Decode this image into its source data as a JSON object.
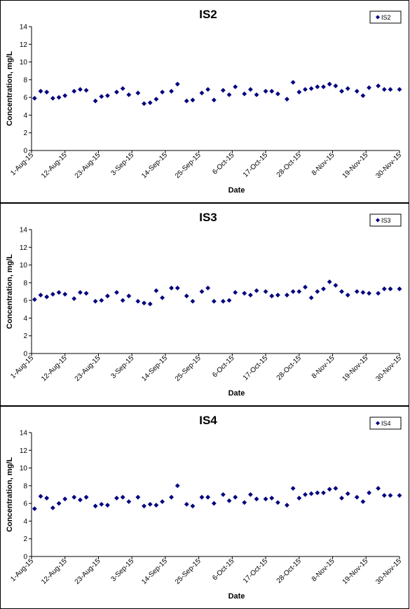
{
  "chart_data": [
    {
      "type": "scatter",
      "title": "IS2",
      "xlabel": "Date",
      "ylabel": "Concentration, mg/L",
      "ylim": [
        0,
        14
      ],
      "yticks": [
        "0",
        "2",
        "4",
        "6",
        "8",
        "10",
        "12",
        "14"
      ],
      "xlim": [
        "2015-08-01",
        "2015-11-30"
      ],
      "xticks": [
        "1-Aug-15",
        "12-Aug-15",
        "23-Aug-15",
        "3-Sep-15",
        "14-Sep-15",
        "25-Sep-15",
        "6-Oct-15",
        "17-Oct-15",
        "28-Oct-15",
        "8-Nov-15",
        "19-Nov-15",
        "30-Nov-15"
      ],
      "grid": false,
      "legend": "top-right",
      "marker_color": "#00007F",
      "series": [
        {
          "name": "IS2",
          "x": [
            "2015-08-02",
            "2015-08-04",
            "2015-08-06",
            "2015-08-08",
            "2015-08-10",
            "2015-08-12",
            "2015-08-15",
            "2015-08-17",
            "2015-08-19",
            "2015-08-22",
            "2015-08-24",
            "2015-08-26",
            "2015-08-29",
            "2015-08-31",
            "2015-09-02",
            "2015-09-05",
            "2015-09-07",
            "2015-09-09",
            "2015-09-11",
            "2015-09-13",
            "2015-09-16",
            "2015-09-18",
            "2015-09-21",
            "2015-09-23",
            "2015-09-26",
            "2015-09-28",
            "2015-09-30",
            "2015-10-03",
            "2015-10-05",
            "2015-10-07",
            "2015-10-10",
            "2015-10-12",
            "2015-10-14",
            "2015-10-17",
            "2015-10-19",
            "2015-10-21",
            "2015-10-24",
            "2015-10-26",
            "2015-10-28",
            "2015-10-30",
            "2015-11-01",
            "2015-11-03",
            "2015-11-05",
            "2015-11-07",
            "2015-11-09",
            "2015-11-11",
            "2015-11-13",
            "2015-11-16",
            "2015-11-18",
            "2015-11-20",
            "2015-11-23",
            "2015-11-25",
            "2015-11-27",
            "2015-11-30"
          ],
          "y": [
            5.9,
            6.7,
            6.6,
            5.9,
            6.0,
            6.2,
            6.7,
            6.9,
            6.8,
            5.6,
            6.1,
            6.2,
            6.6,
            7.0,
            6.3,
            6.5,
            5.3,
            5.4,
            5.8,
            6.6,
            6.7,
            7.5,
            5.6,
            5.7,
            6.5,
            6.9,
            5.7,
            6.8,
            6.3,
            7.2,
            6.4,
            6.9,
            6.3,
            6.7,
            6.7,
            6.4,
            5.8,
            7.7,
            6.6,
            6.9,
            7.0,
            7.2,
            7.2,
            7.5,
            7.3,
            6.7,
            7.0,
            6.7,
            6.2,
            7.1,
            7.3,
            6.9,
            6.9,
            6.9
          ]
        }
      ]
    },
    {
      "type": "scatter",
      "title": "IS3",
      "xlabel": "Date",
      "ylabel": "Concentration, mg/L",
      "ylim": [
        0,
        14
      ],
      "yticks": [
        "0",
        "2",
        "4",
        "6",
        "8",
        "10",
        "12",
        "14"
      ],
      "xlim": [
        "2015-08-01",
        "2015-11-30"
      ],
      "xticks": [
        "1-Aug-15",
        "12-Aug-15",
        "23-Aug-15",
        "3-Sep-15",
        "14-Sep-15",
        "25-Sep-15",
        "6-Oct-15",
        "17-Oct-15",
        "28-Oct-15",
        "8-Nov-15",
        "19-Nov-15",
        "30-Nov-15"
      ],
      "grid": false,
      "legend": "top-right",
      "marker_color": "#00007F",
      "series": [
        {
          "name": "IS3",
          "x": [
            "2015-08-02",
            "2015-08-04",
            "2015-08-06",
            "2015-08-08",
            "2015-08-10",
            "2015-08-12",
            "2015-08-15",
            "2015-08-17",
            "2015-08-19",
            "2015-08-22",
            "2015-08-24",
            "2015-08-26",
            "2015-08-29",
            "2015-08-31",
            "2015-09-02",
            "2015-09-05",
            "2015-09-07",
            "2015-09-09",
            "2015-09-11",
            "2015-09-13",
            "2015-09-16",
            "2015-09-18",
            "2015-09-21",
            "2015-09-23",
            "2015-09-26",
            "2015-09-28",
            "2015-09-30",
            "2015-10-03",
            "2015-10-05",
            "2015-10-07",
            "2015-10-10",
            "2015-10-12",
            "2015-10-14",
            "2015-10-17",
            "2015-10-19",
            "2015-10-21",
            "2015-10-24",
            "2015-10-26",
            "2015-10-28",
            "2015-10-30",
            "2015-11-01",
            "2015-11-03",
            "2015-11-05",
            "2015-11-07",
            "2015-11-09",
            "2015-11-11",
            "2015-11-13",
            "2015-11-16",
            "2015-11-18",
            "2015-11-20",
            "2015-11-23",
            "2015-11-25",
            "2015-11-27",
            "2015-11-30"
          ],
          "y": [
            6.1,
            6.6,
            6.4,
            6.7,
            6.9,
            6.7,
            6.2,
            6.9,
            6.8,
            5.9,
            6.0,
            6.5,
            6.9,
            6.0,
            6.5,
            5.9,
            5.7,
            5.6,
            7.1,
            6.3,
            7.4,
            7.4,
            6.5,
            5.9,
            7.0,
            7.4,
            5.9,
            5.9,
            6.0,
            6.9,
            6.8,
            6.6,
            7.1,
            7.0,
            6.5,
            6.6,
            6.6,
            7.0,
            7.0,
            7.5,
            6.3,
            7.0,
            7.3,
            8.1,
            7.7,
            7.0,
            6.6,
            7.0,
            6.9,
            6.8,
            6.8,
            7.3,
            7.3,
            7.3
          ]
        }
      ]
    },
    {
      "type": "scatter",
      "title": "IS4",
      "xlabel": "Date",
      "ylabel": "Concentration, mg/L",
      "ylim": [
        0,
        14
      ],
      "yticks": [
        "0",
        "2",
        "4",
        "6",
        "8",
        "10",
        "12",
        "14"
      ],
      "xlim": [
        "2015-08-01",
        "2015-11-30"
      ],
      "xticks": [
        "1-Aug-15",
        "12-Aug-15",
        "23-Aug-15",
        "3-Sep-15",
        "14-Sep-15",
        "25-Sep-15",
        "6-Oct-15",
        "17-Oct-15",
        "28-Oct-15",
        "8-Nov-15",
        "19-Nov-15",
        "30-Nov-15"
      ],
      "grid": false,
      "legend": "top-right",
      "marker_color": "#00007F",
      "series": [
        {
          "name": "IS4",
          "x": [
            "2015-08-02",
            "2015-08-04",
            "2015-08-06",
            "2015-08-08",
            "2015-08-10",
            "2015-08-12",
            "2015-08-15",
            "2015-08-17",
            "2015-08-19",
            "2015-08-22",
            "2015-08-24",
            "2015-08-26",
            "2015-08-29",
            "2015-08-31",
            "2015-09-02",
            "2015-09-05",
            "2015-09-07",
            "2015-09-09",
            "2015-09-11",
            "2015-09-13",
            "2015-09-16",
            "2015-09-18",
            "2015-09-21",
            "2015-09-23",
            "2015-09-26",
            "2015-09-28",
            "2015-09-30",
            "2015-10-03",
            "2015-10-05",
            "2015-10-07",
            "2015-10-10",
            "2015-10-12",
            "2015-10-14",
            "2015-10-17",
            "2015-10-19",
            "2015-10-21",
            "2015-10-24",
            "2015-10-26",
            "2015-10-28",
            "2015-10-30",
            "2015-11-01",
            "2015-11-03",
            "2015-11-05",
            "2015-11-07",
            "2015-11-09",
            "2015-11-11",
            "2015-11-13",
            "2015-11-16",
            "2015-11-18",
            "2015-11-20",
            "2015-11-23",
            "2015-11-25",
            "2015-11-27",
            "2015-11-30"
          ],
          "y": [
            5.4,
            6.8,
            6.6,
            5.5,
            6.0,
            6.5,
            6.7,
            6.4,
            6.7,
            5.7,
            5.9,
            5.8,
            6.6,
            6.7,
            6.2,
            6.7,
            5.7,
            5.9,
            5.8,
            6.2,
            6.7,
            8.0,
            5.9,
            5.7,
            6.7,
            6.7,
            6.0,
            7.0,
            6.3,
            6.7,
            6.1,
            7.0,
            6.5,
            6.5,
            6.6,
            6.1,
            5.8,
            7.7,
            6.6,
            7.0,
            7.1,
            7.2,
            7.2,
            7.6,
            7.7,
            6.6,
            7.1,
            6.7,
            6.2,
            7.2,
            7.7,
            6.9,
            6.9,
            6.9
          ]
        }
      ]
    }
  ]
}
